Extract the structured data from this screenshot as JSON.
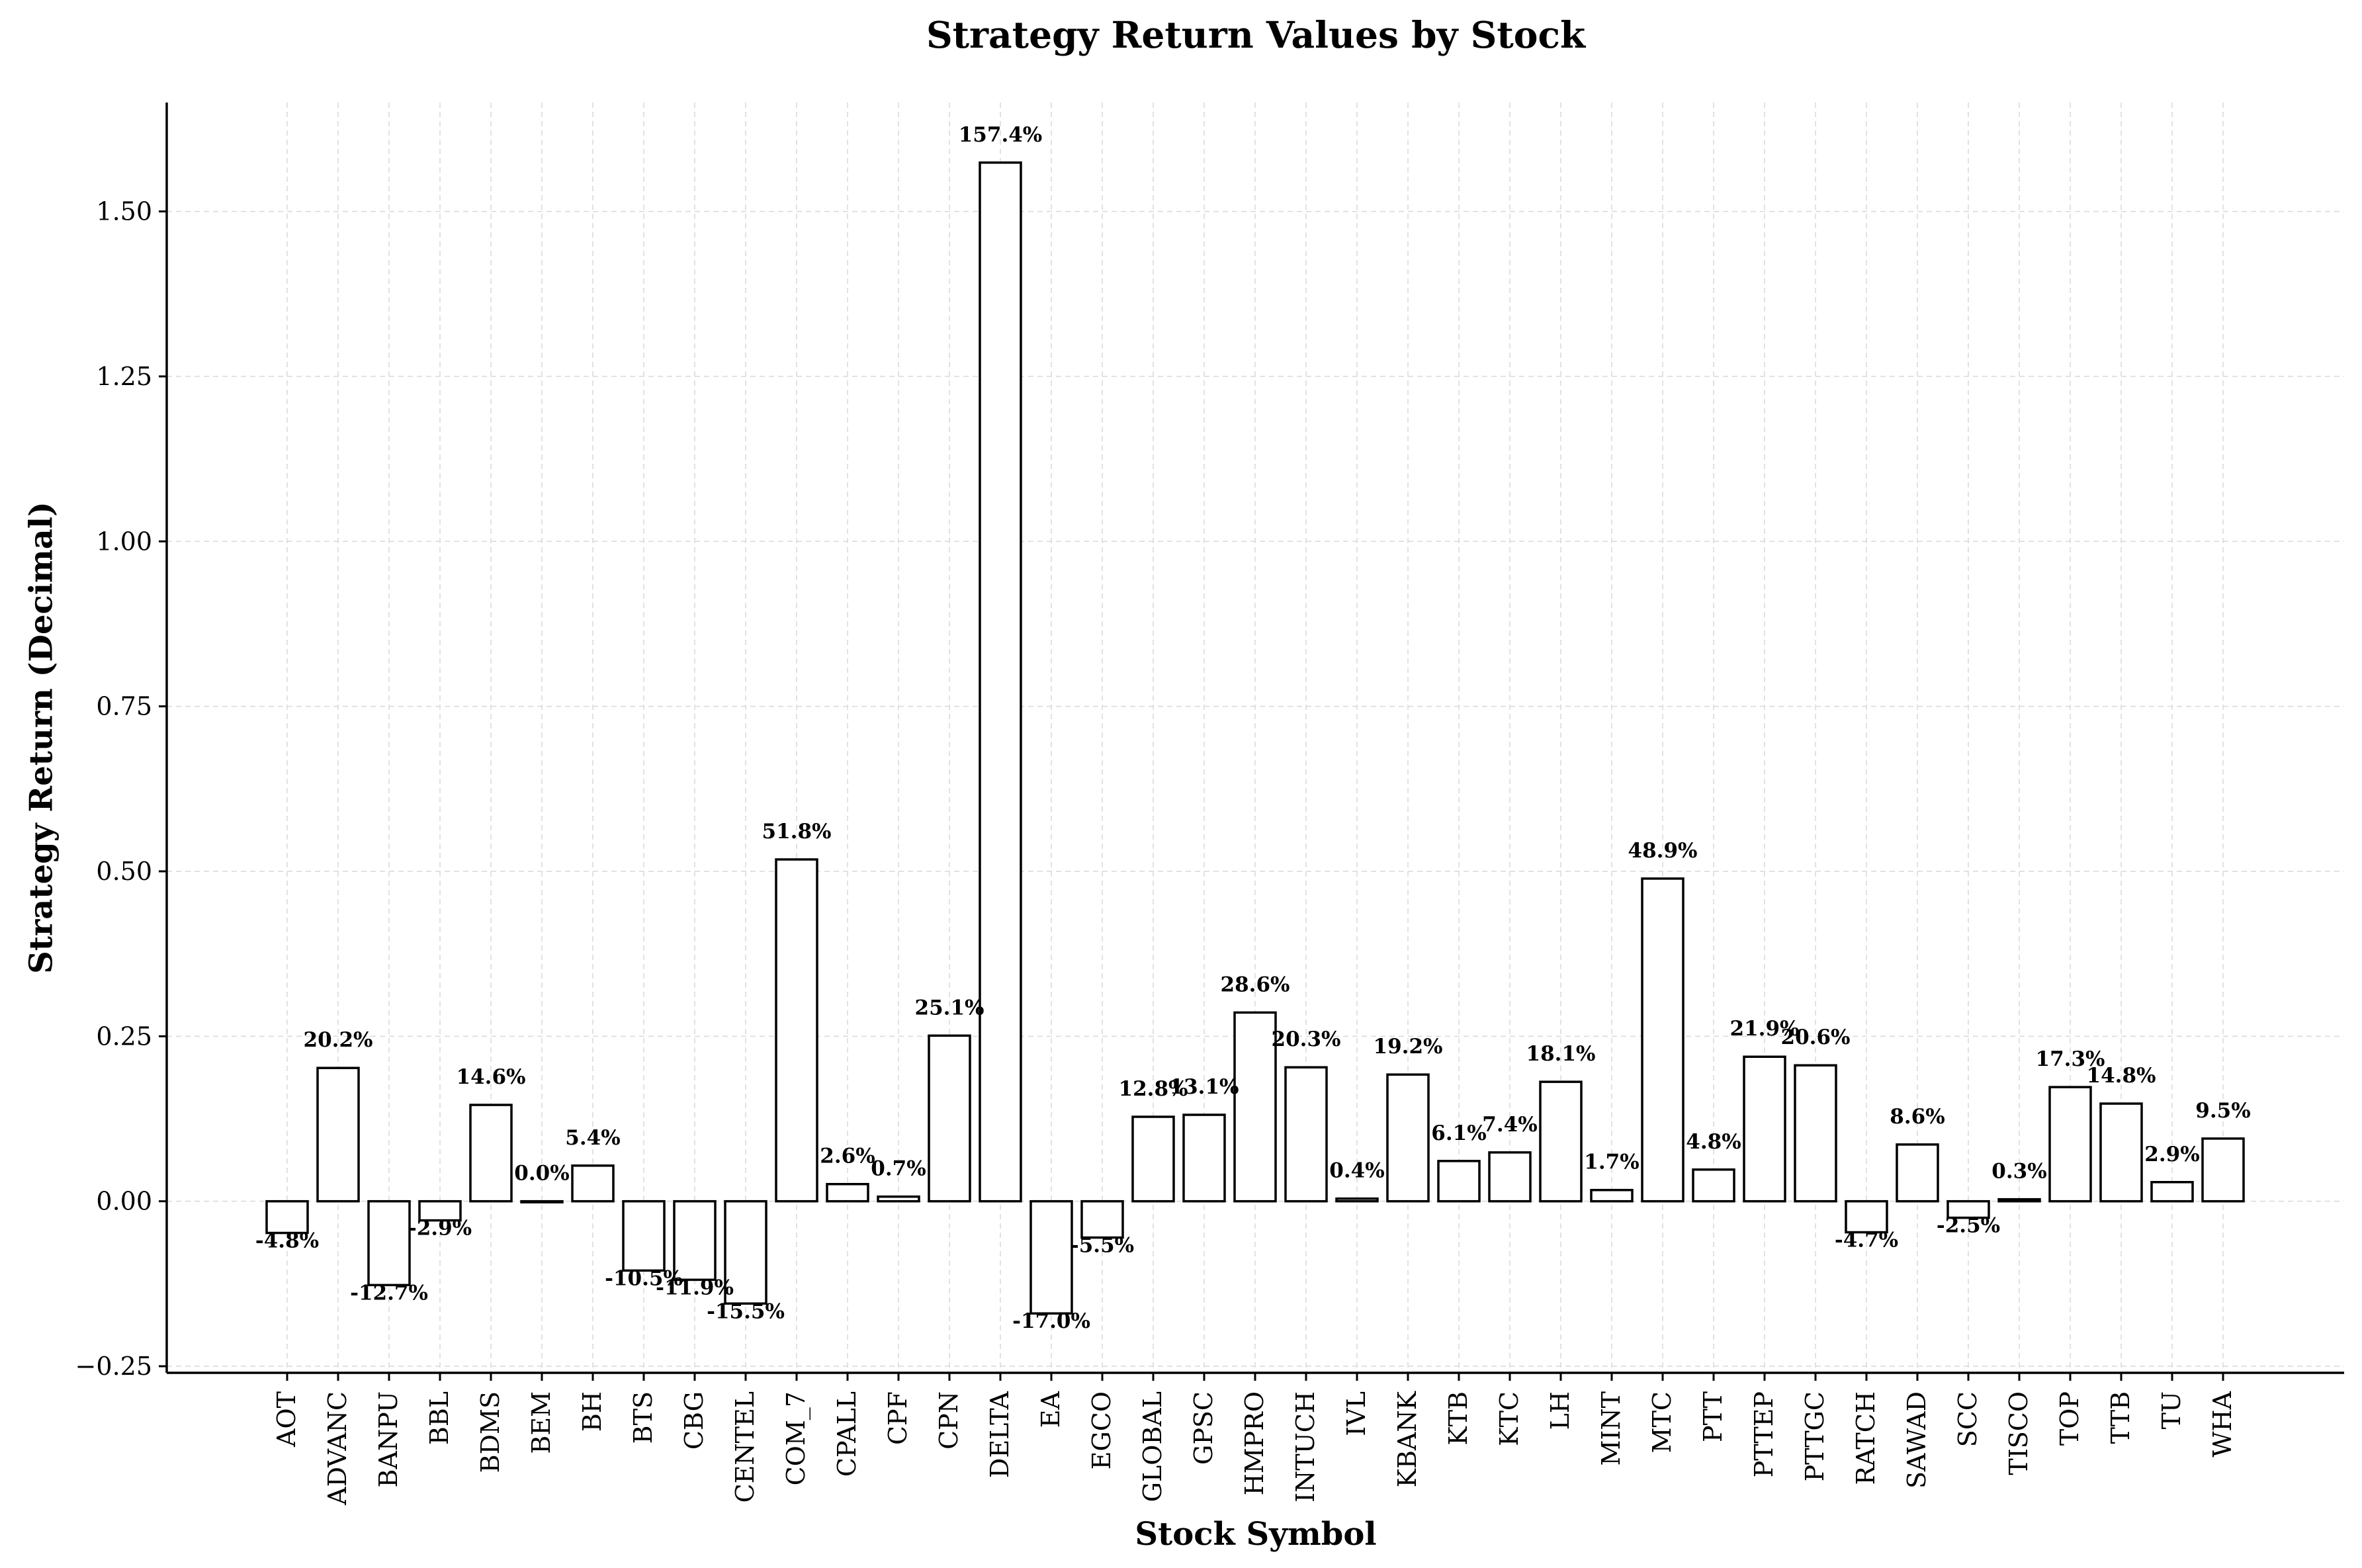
{
  "chart_data": {
    "type": "bar",
    "title": "Strategy Return Values by Stock",
    "xlabel": "Stock Symbol",
    "ylabel": "Strategy Return (Decimal)",
    "ylim": [
      -0.26,
      1.665
    ],
    "yticks": [
      -0.25,
      0.0,
      0.25,
      0.5,
      0.75,
      1.0,
      1.25,
      1.5
    ],
    "ytick_labels": [
      "−0.25",
      "0.00",
      "0.25",
      "0.50",
      "0.75",
      "1.00",
      "1.25",
      "1.50"
    ],
    "grid": true,
    "categories": [
      "AOT",
      "ADVANC",
      "BANPU",
      "BBL",
      "BDMS",
      "BEM",
      "BH",
      "BTS",
      "CBG",
      "CENTEL",
      "COM_7",
      "CPALL",
      "CPF",
      "CPN",
      "DELTA",
      "EA",
      "EGCO",
      "GLOBAL",
      "GPSC",
      "HMPRO",
      "INTUCH",
      "IVL",
      "KBANK",
      "KTB",
      "KTC",
      "LH",
      "MINT",
      "MTC",
      "PTT",
      "PTTEP",
      "PTTGC",
      "RATCH",
      "SAWAD",
      "SCC",
      "TISCO",
      "TOP",
      "TTB",
      "TU",
      "WHA"
    ],
    "values": [
      -0.048,
      0.202,
      -0.127,
      -0.029,
      0.146,
      0.0,
      0.054,
      -0.105,
      -0.119,
      -0.155,
      0.518,
      0.026,
      0.007,
      0.251,
      1.574,
      -0.17,
      -0.055,
      0.128,
      0.131,
      0.286,
      0.203,
      0.004,
      0.192,
      0.061,
      0.074,
      0.181,
      0.017,
      0.489,
      0.048,
      0.219,
      0.206,
      -0.047,
      0.086,
      -0.025,
      0.003,
      0.173,
      0.148,
      0.029,
      0.095
    ],
    "data_labels": [
      "-4.8%",
      "20.2%",
      "-12.7%",
      "-2.9%",
      "14.6%",
      "0.0%",
      "5.4%",
      "-10.5%",
      "-11.9%",
      "-15.5%",
      "51.8%",
      "2.6%",
      "0.7%",
      "25.1%",
      "157.4%",
      "-17.0%",
      "-5.5%",
      "12.8%",
      "13.1%",
      "28.6%",
      "20.3%",
      "0.4%",
      "19.2%",
      "6.1%",
      "7.4%",
      "18.1%",
      "1.7%",
      "48.9%",
      "4.8%",
      "21.9%",
      "20.6%",
      "-4.7%",
      "8.6%",
      "-2.5%",
      "0.3%",
      "17.3%",
      "14.8%",
      "2.9%",
      "9.5%"
    ],
    "bar_fill": "#ffffff",
    "bar_edge": "#000000",
    "grid_color": "#d9d9d9"
  }
}
